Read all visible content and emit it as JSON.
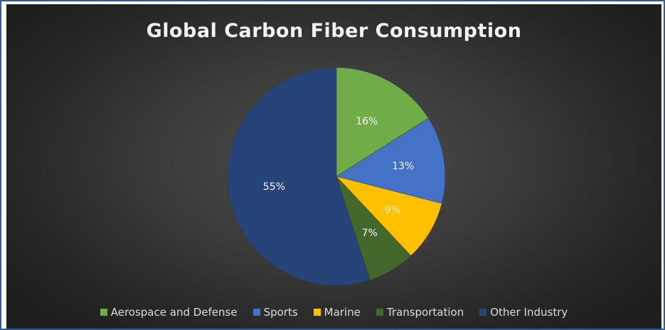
{
  "chart_data": {
    "type": "pie",
    "title": "Global Carbon Fiber Consumption",
    "slices": [
      {
        "name": "Aerospace and Defense",
        "value": 16,
        "label": "16%",
        "color": "#70ad47"
      },
      {
        "name": "Sports",
        "value": 13,
        "label": "13%",
        "color": "#4472c4"
      },
      {
        "name": "Marine",
        "value": 9,
        "label": "9%",
        "color": "#ffc000"
      },
      {
        "name": "Transportation",
        "value": 7,
        "label": "7%",
        "color": "#43682b"
      },
      {
        "name": "Other Industry",
        "value": 55,
        "label": "55%",
        "color": "#264478"
      }
    ],
    "legend_position": "bottom"
  }
}
